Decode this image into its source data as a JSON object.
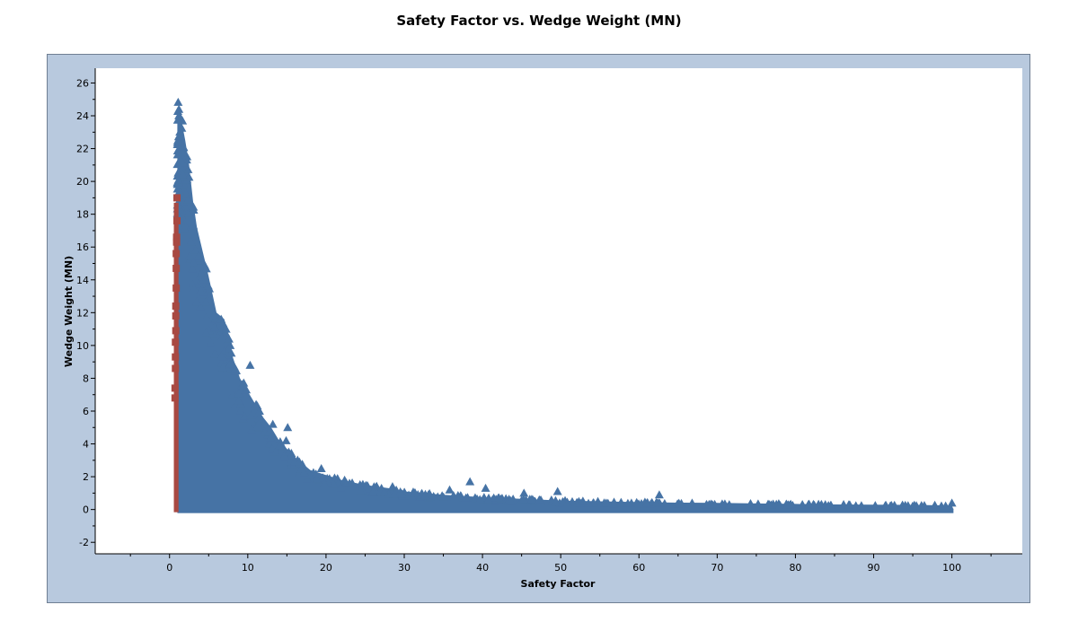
{
  "chart_data": {
    "type": "scatter",
    "title": "Safety Factor vs. Wedge Weight (MN)",
    "xlabel": "Safety Factor",
    "ylabel": "Wedge Weight (MN)",
    "xlim": [
      -9.5,
      109
    ],
    "ylim": [
      -2.7,
      26.9
    ],
    "x_ticks": [
      0,
      10,
      20,
      30,
      40,
      50,
      60,
      70,
      80,
      90,
      100
    ],
    "y_ticks": [
      -2,
      0,
      2,
      4,
      6,
      8,
      10,
      12,
      14,
      16,
      18,
      20,
      22,
      24,
      26
    ],
    "grid": false,
    "legend": "none",
    "colors": {
      "safe": "#4673a5",
      "failed": "#a84942",
      "plot_background": "#ffffff",
      "frame_background": "#b8c9de"
    },
    "series": [
      {
        "marker": "triangle",
        "color": "#4673a5",
        "envelope_upper": [
          [
            1.2,
            24.4
          ],
          [
            1.6,
            23.5
          ],
          [
            2.0,
            22.5
          ],
          [
            2.5,
            21.0
          ],
          [
            3.0,
            18.8
          ],
          [
            3.5,
            17.2
          ],
          [
            4.0,
            16.2
          ],
          [
            5.0,
            14.2
          ],
          [
            6.0,
            12.0
          ],
          [
            7.0,
            11.6
          ],
          [
            8.0,
            9.4
          ],
          [
            9.0,
            8.0
          ],
          [
            10.0,
            7.2
          ],
          [
            11.0,
            6.4
          ],
          [
            12.0,
            5.6
          ],
          [
            13.0,
            5.0
          ],
          [
            14.0,
            4.2
          ],
          [
            15.0,
            3.7
          ],
          [
            16.0,
            3.2
          ],
          [
            18.0,
            2.4
          ],
          [
            20.0,
            2.1
          ],
          [
            22.0,
            1.8
          ],
          [
            25.0,
            1.5
          ],
          [
            28.0,
            1.3
          ],
          [
            30.0,
            1.1
          ],
          [
            35.0,
            0.9
          ],
          [
            40.0,
            0.75
          ],
          [
            45.0,
            0.65
          ],
          [
            50.0,
            0.55
          ],
          [
            55.0,
            0.5
          ],
          [
            60.0,
            0.45
          ],
          [
            65.0,
            0.42
          ],
          [
            70.0,
            0.4
          ],
          [
            75.0,
            0.37
          ],
          [
            80.0,
            0.34
          ],
          [
            85.0,
            0.31
          ],
          [
            90.0,
            0.3
          ],
          [
            95.0,
            0.28
          ],
          [
            100.0,
            0.25
          ]
        ],
        "x_range": [
          1.0,
          100.2
        ],
        "y_range": [
          0.0,
          24.4
        ],
        "outliers": [
          {
            "x": 1.2,
            "y": 24.4
          },
          {
            "x": 4.6,
            "y": 14.0
          },
          {
            "x": 5.6,
            "y": 11.8
          },
          {
            "x": 6.6,
            "y": 11.6
          },
          {
            "x": 7.6,
            "y": 10.4
          },
          {
            "x": 10.3,
            "y": 8.8
          },
          {
            "x": 9.8,
            "y": 7.3
          },
          {
            "x": 11.5,
            "y": 6.0
          },
          {
            "x": 13.2,
            "y": 5.2
          },
          {
            "x": 15.1,
            "y": 5.0
          },
          {
            "x": 14.9,
            "y": 4.2
          },
          {
            "x": 12.9,
            "y": 4.4
          },
          {
            "x": 16.6,
            "y": 2.9
          },
          {
            "x": 19.4,
            "y": 2.5
          },
          {
            "x": 23.0,
            "y": 1.6
          },
          {
            "x": 28.5,
            "y": 1.4
          },
          {
            "x": 35.8,
            "y": 1.2
          },
          {
            "x": 38.4,
            "y": 1.7
          },
          {
            "x": 40.4,
            "y": 1.3
          },
          {
            "x": 45.3,
            "y": 1.0
          },
          {
            "x": 49.6,
            "y": 1.1
          },
          {
            "x": 62.6,
            "y": 0.9
          },
          {
            "x": 100.0,
            "y": 0.4
          }
        ]
      },
      {
        "marker": "square",
        "color": "#a84942",
        "x_range": [
          0.55,
          1.15
        ],
        "y_range": [
          0.0,
          19.0
        ],
        "points": [
          {
            "x": 0.95,
            "y": 19.0
          },
          {
            "x": 0.95,
            "y": 17.6
          },
          {
            "x": 0.9,
            "y": 16.6
          },
          {
            "x": 0.9,
            "y": 16.3
          },
          {
            "x": 0.85,
            "y": 15.6
          },
          {
            "x": 0.85,
            "y": 14.7
          },
          {
            "x": 0.85,
            "y": 13.5
          },
          {
            "x": 0.8,
            "y": 12.4
          },
          {
            "x": 0.8,
            "y": 11.8
          },
          {
            "x": 0.8,
            "y": 10.9
          },
          {
            "x": 0.75,
            "y": 10.2
          },
          {
            "x": 0.75,
            "y": 9.3
          },
          {
            "x": 0.75,
            "y": 8.6
          },
          {
            "x": 0.7,
            "y": 7.4
          },
          {
            "x": 0.7,
            "y": 6.8
          }
        ]
      }
    ]
  }
}
